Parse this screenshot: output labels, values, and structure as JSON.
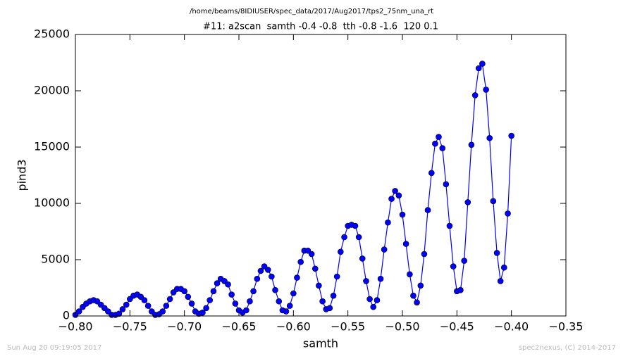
{
  "chart_data": {
    "type": "line",
    "title": "/home/beams/8IDIUSER/spec_data/2017/Aug2017/tps2_75nm_una_rt",
    "subtitle": "#11: a2scan  samth -0.4 -0.8  tth -0.8 -1.6  120 0.1",
    "x_label": "samth",
    "y_label": "pind3",
    "footer_left": "Sun Aug 20 09:19:05 2017",
    "footer_right": "spec2nexus, (C) 2014-2017",
    "xlim": [
      -0.8,
      -0.35
    ],
    "ylim": [
      0,
      25000
    ],
    "xticks": [
      {
        "value": -0.8,
        "label": "−0.80"
      },
      {
        "value": -0.75,
        "label": "−0.75"
      },
      {
        "value": -0.7,
        "label": "−0.70"
      },
      {
        "value": -0.65,
        "label": "−0.65"
      },
      {
        "value": -0.6,
        "label": "−0.60"
      },
      {
        "value": -0.55,
        "label": "−0.55"
      },
      {
        "value": -0.5,
        "label": "−0.50"
      },
      {
        "value": -0.45,
        "label": "−0.45"
      },
      {
        "value": -0.4,
        "label": "−0.40"
      },
      {
        "value": -0.35,
        "label": "−0.35"
      }
    ],
    "yticks": [
      0,
      5000,
      10000,
      15000,
      20000,
      25000
    ],
    "grid": false,
    "x": [
      -0.8,
      -0.7967,
      -0.7933,
      -0.79,
      -0.7867,
      -0.7833,
      -0.78,
      -0.7767,
      -0.7733,
      -0.77,
      -0.7667,
      -0.7633,
      -0.76,
      -0.7567,
      -0.7533,
      -0.75,
      -0.7467,
      -0.7433,
      -0.74,
      -0.7367,
      -0.7333,
      -0.73,
      -0.7267,
      -0.7233,
      -0.72,
      -0.7167,
      -0.7133,
      -0.71,
      -0.7067,
      -0.7033,
      -0.7,
      -0.6967,
      -0.6933,
      -0.69,
      -0.6867,
      -0.6833,
      -0.68,
      -0.6767,
      -0.6733,
      -0.67,
      -0.6667,
      -0.6633,
      -0.66,
      -0.6567,
      -0.6533,
      -0.65,
      -0.6467,
      -0.6433,
      -0.64,
      -0.6367,
      -0.6333,
      -0.63,
      -0.6267,
      -0.6233,
      -0.62,
      -0.6167,
      -0.6133,
      -0.61,
      -0.6067,
      -0.6033,
      -0.6,
      -0.5967,
      -0.5933,
      -0.59,
      -0.5867,
      -0.5833,
      -0.58,
      -0.5767,
      -0.5733,
      -0.57,
      -0.5667,
      -0.5633,
      -0.56,
      -0.5567,
      -0.5533,
      -0.55,
      -0.5467,
      -0.5433,
      -0.54,
      -0.5367,
      -0.5333,
      -0.53,
      -0.5267,
      -0.5233,
      -0.52,
      -0.5167,
      -0.5133,
      -0.51,
      -0.5067,
      -0.5033,
      -0.5,
      -0.4967,
      -0.4933,
      -0.49,
      -0.4867,
      -0.4833,
      -0.48,
      -0.4767,
      -0.4733,
      -0.47,
      -0.4667,
      -0.4633,
      -0.46,
      -0.4567,
      -0.4533,
      -0.45,
      -0.4467,
      -0.4433,
      -0.44,
      -0.4367,
      -0.4333,
      -0.43,
      -0.4267,
      -0.4233,
      -0.42,
      -0.4167,
      -0.4133,
      -0.41,
      -0.4067,
      -0.4033,
      -0.4
    ],
    "series": [
      {
        "color": "#0000ff",
        "values": [
          100,
          400,
          800,
          1100,
          1300,
          1400,
          1300,
          1000,
          700,
          400,
          100,
          100,
          200,
          600,
          1000,
          1500,
          1800,
          1900,
          1700,
          1400,
          900,
          400,
          100,
          150,
          400,
          900,
          1500,
          2100,
          2400,
          2400,
          2200,
          1700,
          1100,
          400,
          200,
          300,
          700,
          1400,
          2200,
          2900,
          3300,
          3100,
          2800,
          1900,
          1100,
          500,
          300,
          500,
          1300,
          2200,
          3300,
          4000,
          4400,
          4100,
          3500,
          2300,
          1300,
          500,
          400,
          900,
          2000,
          3400,
          4800,
          5800,
          5800,
          5500,
          4200,
          2700,
          1300,
          600,
          700,
          1800,
          3500,
          5700,
          7000,
          8000,
          8100,
          8000,
          7000,
          5100,
          3100,
          1500,
          800,
          1400,
          3300,
          5900,
          8300,
          10400,
          11100,
          10700,
          9000,
          6400,
          3700,
          1800,
          1200,
          2700,
          5500,
          9400,
          12700,
          15300,
          15900,
          14900,
          11700,
          8000,
          4400,
          2200,
          2300,
          4900,
          10100,
          15200,
          19600,
          22000,
          22400,
          20100,
          15800,
          10200,
          5600,
          3100,
          4300,
          9100,
          16000
        ]
      }
    ]
  }
}
